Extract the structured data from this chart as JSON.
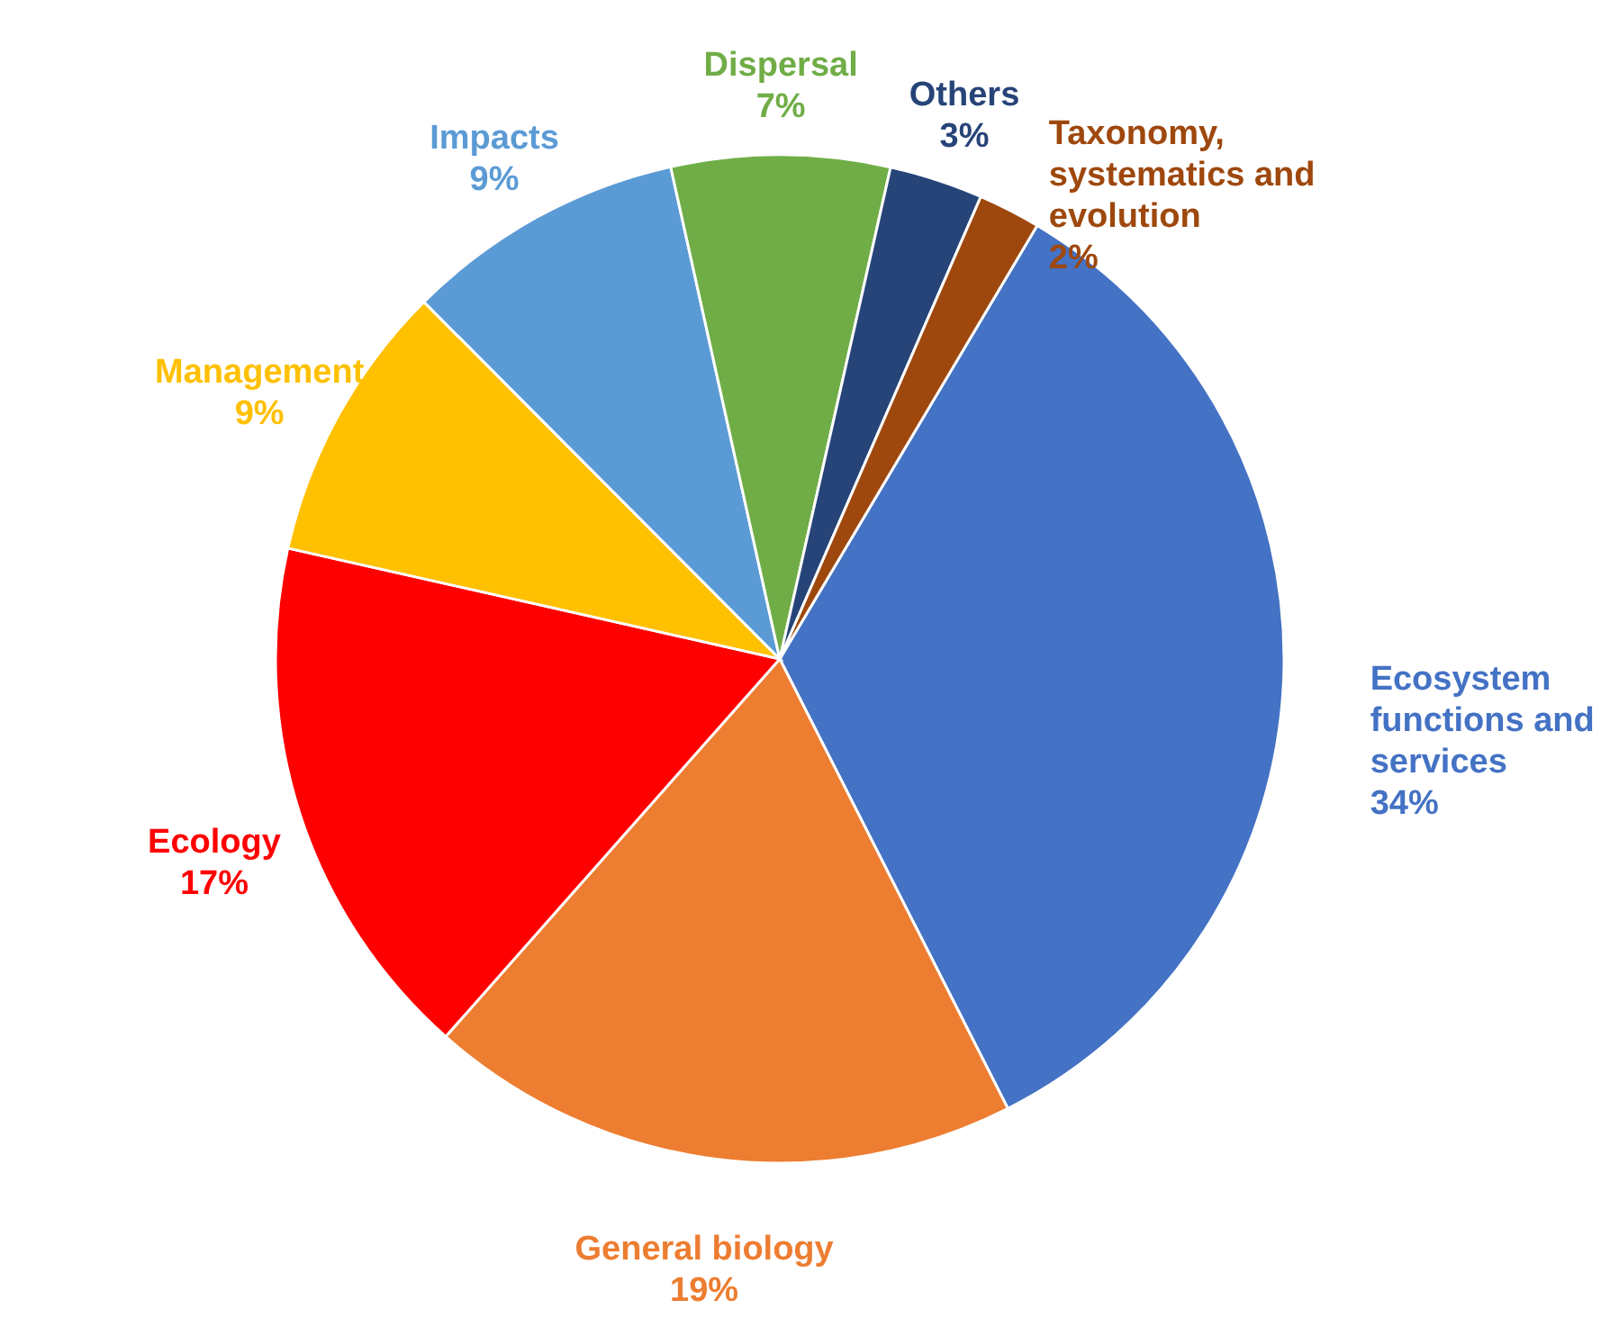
{
  "chart_data": {
    "type": "pie",
    "categories": [
      "Ecosystem functions and services",
      "General biology",
      "Ecology",
      "Management",
      "Impacts",
      "Dispersal",
      "Others",
      "Taxonomy, systematics and evolution"
    ],
    "values": [
      34,
      19,
      17,
      9,
      9,
      7,
      3,
      2
    ],
    "value_labels": [
      "34%",
      "19%",
      "17%",
      "9%",
      "9%",
      "7%",
      "3%",
      "2%"
    ],
    "colors": [
      "#4472c4",
      "#ed7d31",
      "#ff0000",
      "#ffc000",
      "#5b9bd5",
      "#70ad47",
      "#264478",
      "#9e480e"
    ]
  }
}
